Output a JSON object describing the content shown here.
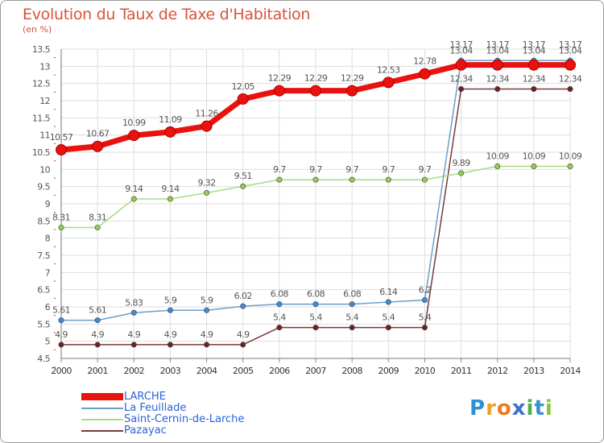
{
  "chart_data": {
    "type": "line",
    "title": "Evolution du Taux de Taxe d'Habitation",
    "subtitle": "(en %)",
    "x": [
      "2000",
      "2001",
      "2002",
      "2003",
      "2004",
      "2005",
      "2006",
      "2007",
      "2008",
      "2009",
      "2010",
      "2011",
      "2012",
      "2013",
      "2014"
    ],
    "yticks": [
      "4.5",
      "5",
      "5.5",
      "6",
      "6.5",
      "7",
      "7.5",
      "8",
      "8.5",
      "9",
      "9.5",
      "10",
      "10.5",
      "11",
      "11.5",
      "12",
      "12.5",
      "13",
      "13.5"
    ],
    "ylim": [
      4.5,
      13.5
    ],
    "grid": true,
    "legend_position": "bottom-left",
    "series": [
      {
        "name": "LARCHE",
        "color": "#e8120e",
        "values": [
          10.57,
          10.67,
          10.99,
          11.09,
          11.26,
          12.05,
          12.29,
          12.29,
          12.29,
          12.53,
          12.78,
          13.04,
          13.04,
          13.04,
          13.04
        ],
        "labels": [
          "10.57",
          "10.67",
          "10.99",
          "11.09",
          "11.26",
          "12.05",
          "12.29",
          "12.29",
          "12.29",
          "12.53",
          "12.78",
          "13.04",
          "13.04",
          "13.04",
          "13.04"
        ]
      },
      {
        "name": "La Feuillade",
        "color": "#6c9fc8",
        "marker": "#3d8bd9",
        "values": [
          5.61,
          5.61,
          5.83,
          5.9,
          5.9,
          6.02,
          6.08,
          6.08,
          6.08,
          6.14,
          6.2,
          13.17,
          13.17,
          13.17,
          13.17
        ],
        "labels": [
          "5.61",
          "5.61",
          "5.83",
          "5.9",
          "5.9",
          "6.02",
          "6.08",
          "6.08",
          "6.08",
          "6.14",
          "6.2",
          "13.17",
          "13.17",
          "13.17",
          "13.17"
        ]
      },
      {
        "name": "Saint-Cernin-de-Larche",
        "color": "#a6dc84",
        "marker": "#8fd14f",
        "values": [
          8.31,
          8.31,
          9.14,
          9.14,
          9.32,
          9.51,
          9.7,
          9.7,
          9.7,
          9.7,
          9.7,
          9.89,
          10.09,
          10.09,
          10.09
        ],
        "labels": [
          "8.31",
          "8.31",
          "9.14",
          "9.14",
          "9.32",
          "9.51",
          "9.7",
          "9.7",
          "9.7",
          "9.7",
          "9.7",
          "9.89",
          "10.09",
          "10.09",
          "10.09"
        ]
      },
      {
        "name": "Pazayac",
        "color": "#7a3a3a",
        "marker": "#6b2222",
        "values": [
          4.9,
          4.9,
          4.9,
          4.9,
          4.9,
          4.9,
          5.4,
          5.4,
          5.4,
          5.4,
          5.4,
          12.34,
          12.34,
          12.34,
          12.34
        ],
        "labels": [
          "4.9",
          "4.9",
          "4.9",
          "4.9",
          "4.9",
          "4.9",
          "5.4",
          "5.4",
          "5.4",
          "5.4",
          "5.4",
          "12.34",
          "12.34",
          "12.34",
          "12.34"
        ]
      }
    ]
  },
  "logo": {
    "text": "Proxiti",
    "letters": [
      "P",
      "r",
      "o",
      "x",
      "i",
      "t",
      "i"
    ],
    "colors": [
      "#2f8fd8",
      "#f0a020",
      "#f07a20",
      "#3a6fd8",
      "#4cae4c",
      "#3a8fd8",
      "#8cc43c"
    ]
  }
}
